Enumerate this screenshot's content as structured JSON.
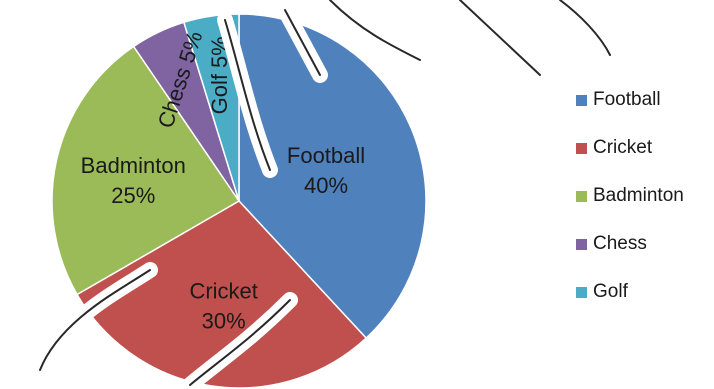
{
  "chart_data": {
    "type": "pie",
    "title": "",
    "categories": [
      "Football",
      "Cricket",
      "Badminton",
      "Chess",
      "Golf"
    ],
    "values": [
      40,
      30,
      25,
      5,
      5
    ],
    "unit": "%",
    "colors": [
      "#4F81BD",
      "#C0504D",
      "#9BBB59",
      "#8064A2",
      "#4BACC6"
    ],
    "slice_labels": [
      "Football 40%",
      "Cricket 30%",
      "Badminton 25%",
      "Chess 5%",
      "Golf 5%"
    ],
    "start_angle_deg": 0,
    "direction": "clockwise",
    "legend": {
      "position": "right",
      "items": [
        "Football",
        "Cricket",
        "Badminton",
        "Chess",
        "Golf"
      ]
    }
  }
}
